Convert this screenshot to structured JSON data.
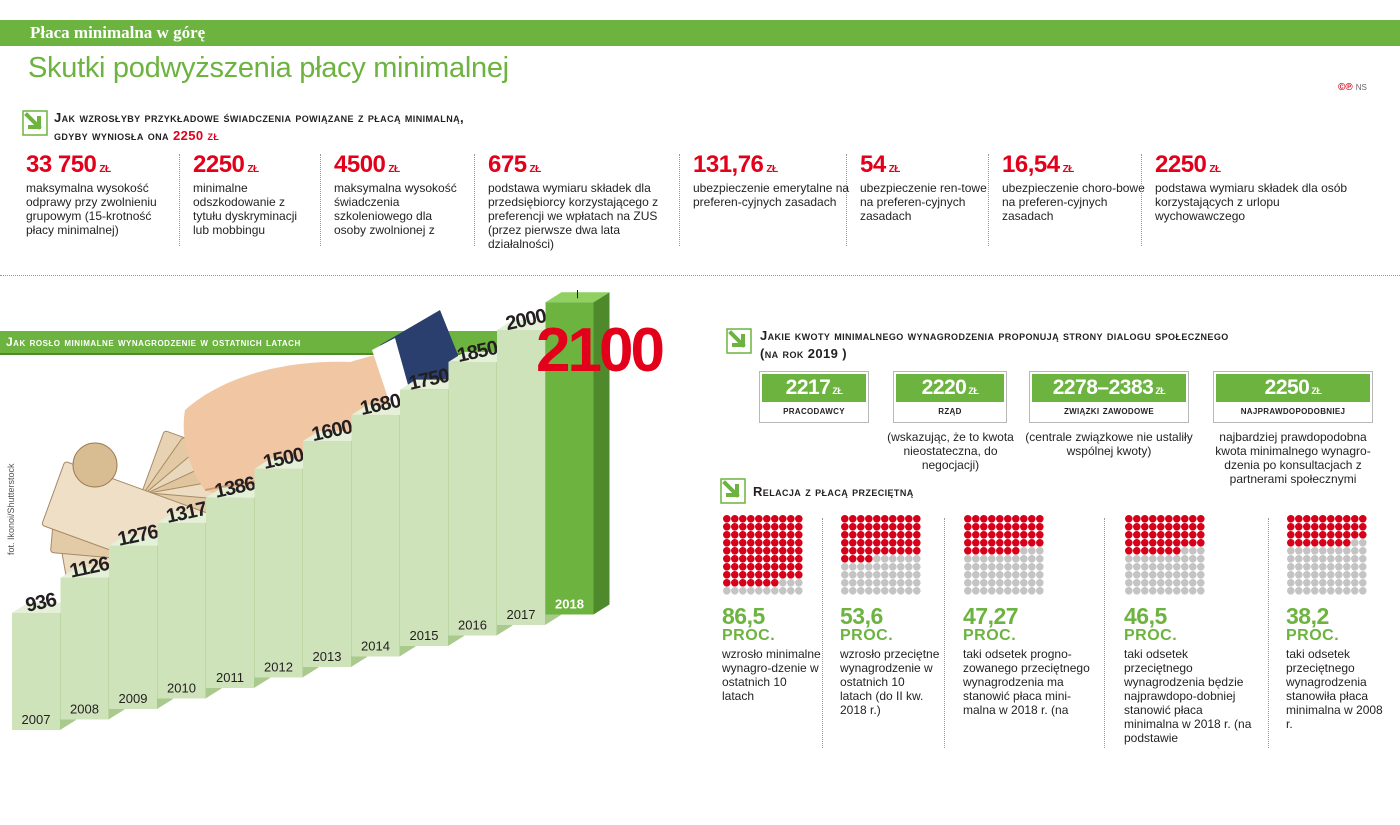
{
  "header": {
    "kicker": "Płaca minimalna w górę",
    "title": "Skutki podwyższenia płacy minimalnej",
    "credit_logo": "©℗",
    "credit_initials": "NS"
  },
  "benefits": {
    "title_line1": "Jak wzrosłyby przykładowe świadczenia powiązane z płacą minimalną,",
    "title_line2": "gdyby wyniosła ona",
    "title_amount": "2250 zł",
    "items": [
      {
        "value": "33 750",
        "unit": "zł",
        "desc": "maksymalna wysokość odprawy przy zwolnieniu grupowym (15-krotność płacy minimalnej)"
      },
      {
        "value": "2250",
        "unit": "zł",
        "desc": "minimalne odszkodowanie z tytułu dyskryminacji lub mobbingu"
      },
      {
        "value": "4500",
        "unit": "zł",
        "desc": "maksymalna wysokość świadczenia szkoleniowego dla osoby zwolnionej z"
      },
      {
        "value": "675",
        "unit": "zł",
        "desc": "podstawa wymiaru składek dla przedsiębiorcy korzystającego z preferencji we wpłatach na ZUS (przez pierwsze dwa lata działalności)"
      },
      {
        "value": "131,76",
        "unit": "zł",
        "desc": "ubezpieczenie emerytalne na preferen-cyjnych zasadach"
      },
      {
        "value": "54",
        "unit": "zł",
        "desc": "ubezpieczenie ren-towe na preferen-cyjnych zasadach"
      },
      {
        "value": "16,54",
        "unit": "zł",
        "desc": "ubezpieczenie choro-bowe na preferen-cyjnych zasadach"
      },
      {
        "value": "2250",
        "unit": "zł",
        "desc": "podstawa wymiaru składek dla osób korzystających z urlopu wychowawczego"
      }
    ]
  },
  "chart": {
    "title": "Jak rosło minimalne wynagrodzenie w  ostatnich latach",
    "highlight_value": "2100",
    "photo_credit": "fot. Ikonoi/Shutterstock"
  },
  "chart_data": {
    "type": "bar",
    "title": "Jak rosło minimalne wynagrodzenie w  ostatnich latach",
    "categories": [
      "2007",
      "2008",
      "2009",
      "2010",
      "2011",
      "2012",
      "2013",
      "2014",
      "2015",
      "2016",
      "2017",
      "2018"
    ],
    "values": [
      936,
      1126,
      1276,
      1317,
      1386,
      1500,
      1600,
      1680,
      1750,
      1850,
      2000,
      2100
    ],
    "value_labels": [
      "936",
      "1126",
      "1276",
      "1317",
      "1386",
      "1500",
      "1600",
      "1680",
      "1750",
      "1850",
      "2000",
      ""
    ],
    "highlight_category": "2018",
    "highlight_label": "2100",
    "colors": {
      "bar": "#cfe3bb",
      "highlight": "#6cb33f"
    }
  },
  "proposals": {
    "title_line1": "Jakie kwoty minimalnego wynagrodzenia proponują strony dialogu społecznego",
    "title_line2": "(na rok 2019 )",
    "items": [
      {
        "value": "2217",
        "unit": "zł",
        "label": "pracodawcy",
        "note": ""
      },
      {
        "value": "2220",
        "unit": "zł",
        "label": "rząd",
        "note": "(wskazując, że to kwota nieostateczna, do negocjacji)"
      },
      {
        "value": "2278–2383",
        "unit": "zł",
        "label": "związki zawodowe",
        "note": "(centrale związkowe nie ustaliły wspólnej kwoty)"
      },
      {
        "value": "2250",
        "unit": "zł",
        "label": "najprawdopodobniej",
        "note": "najbardziej prawdopodobna kwota minimalnego wynagro-dzenia po konsultacjach z partnerami społecznymi"
      }
    ]
  },
  "relation": {
    "title": "Relacja z płacą przeciętną",
    "items": [
      {
        "percent": 86.5,
        "value": "86,5",
        "unit": "PROC.",
        "desc": "wzrosło minimalne wynagro-dzenie w ostatnich 10 latach"
      },
      {
        "percent": 53.6,
        "value": "53,6",
        "unit": "PROC.",
        "desc": "wzrosło przeciętne wynagrodzenie w ostatnich 10 latach (do II kw. 2018 r.)"
      },
      {
        "percent": 47.27,
        "value": "47,27",
        "unit": "PROC.",
        "desc": "taki odsetek progno-zowanego przeciętnego wynagrodzenia ma stanowić płaca mini-malna w 2018 r. (na"
      },
      {
        "percent": 46.5,
        "value": "46,5",
        "unit": "PROC.",
        "desc": "taki odsetek przeciętnego wynagrodzenia będzie najprawdopo-dobniej stanowić płaca minimalna w 2018 r. (na podstawie"
      },
      {
        "percent": 38.2,
        "value": "38,2",
        "unit": "PROC.",
        "desc": "taki odsetek przeciętnego wynagrodzenia stanowiła płaca minimalna w 2008 r."
      }
    ],
    "colors": {
      "filled": "#d7001b",
      "empty": "#c4c4c4"
    }
  }
}
